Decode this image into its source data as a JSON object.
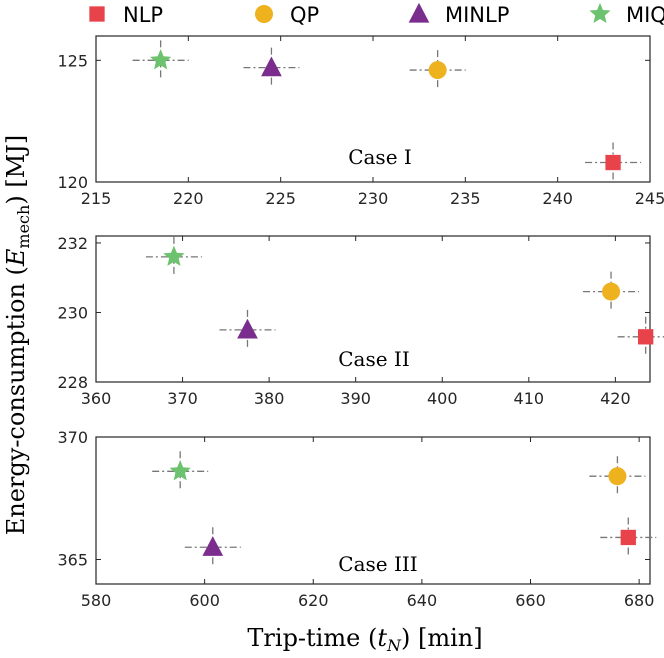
{
  "chart_data": {
    "type": "scatter",
    "ylabel": "Energy-consumption (E_mech) [MJ]",
    "xlabel": "Trip-time (t_N) [min]",
    "legend": [
      {
        "name": "NLP",
        "color": "#e8424a",
        "marker": "square"
      },
      {
        "name": "QP",
        "color": "#eeb21f",
        "marker": "circle"
      },
      {
        "name": "MINLP",
        "color": "#7b2d8e",
        "marker": "triangle"
      },
      {
        "name": "MIQP",
        "color": "#6cc26e",
        "marker": "star"
      }
    ],
    "panels": [
      {
        "label": "Case I",
        "xlim": [
          215,
          245
        ],
        "xticks": [
          215,
          220,
          225,
          230,
          235,
          240,
          245
        ],
        "ylim": [
          120,
          126
        ],
        "yticks": [
          120,
          125
        ],
        "points": [
          {
            "series": "NLP",
            "x": 243,
            "y": 120.8
          },
          {
            "series": "QP",
            "x": 233.5,
            "y": 124.6
          },
          {
            "series": "MINLP",
            "x": 224.5,
            "y": 124.7
          },
          {
            "series": "MIQP",
            "x": 218.5,
            "y": 125.0
          }
        ]
      },
      {
        "label": "Case II",
        "xlim": [
          360,
          424
        ],
        "xticks": [
          360,
          370,
          380,
          390,
          400,
          410,
          420
        ],
        "ylim": [
          228,
          232.2
        ],
        "yticks": [
          228,
          230,
          232
        ],
        "points": [
          {
            "series": "NLP",
            "x": 423.5,
            "y": 229.3
          },
          {
            "series": "QP",
            "x": 419.5,
            "y": 230.6
          },
          {
            "series": "MINLP",
            "x": 377.5,
            "y": 229.5
          },
          {
            "series": "MIQP",
            "x": 369,
            "y": 231.6
          }
        ]
      },
      {
        "label": "Case III",
        "xlim": [
          580,
          682
        ],
        "xticks": [
          580,
          600,
          620,
          640,
          660,
          680
        ],
        "ylim": [
          364,
          370
        ],
        "yticks": [
          365,
          370
        ],
        "points": [
          {
            "series": "NLP",
            "x": 678,
            "y": 365.9
          },
          {
            "series": "QP",
            "x": 676,
            "y": 368.4
          },
          {
            "series": "MINLP",
            "x": 601.5,
            "y": 365.5
          },
          {
            "series": "MIQP",
            "x": 595.5,
            "y": 368.6
          }
        ]
      }
    ]
  }
}
